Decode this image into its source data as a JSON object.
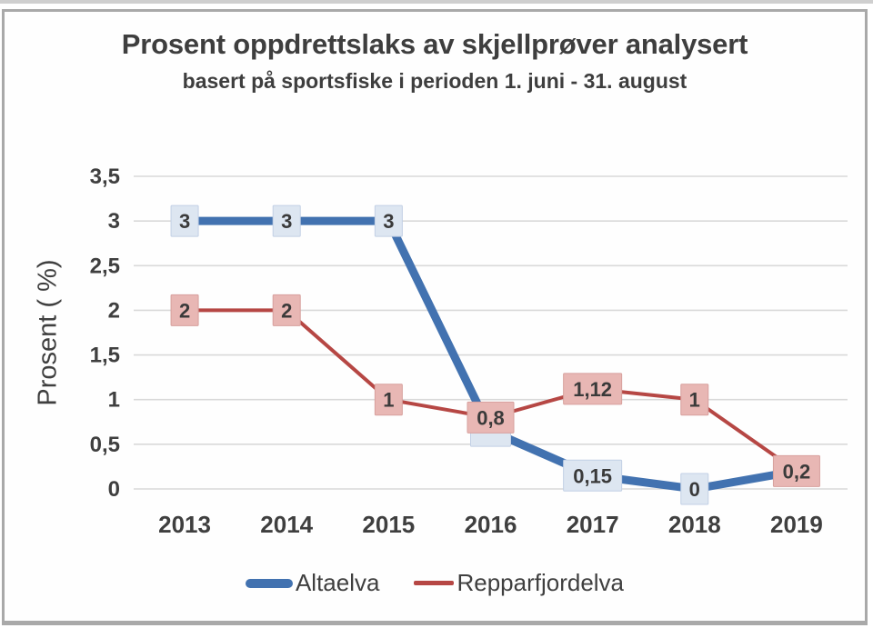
{
  "window": {
    "background": "#ffffff",
    "top_strip_color": "#cfcfcf",
    "frame_border_color": "#a9a9a9"
  },
  "chart_data": {
    "type": "line",
    "title": "Prosent oppdrettslaks av skjellprøver analysert",
    "subtitle": "basert på sportsfiske i perioden 1. juni - 31. august",
    "ylabel": "Prosent ( %)",
    "xlabel": "",
    "categories": [
      "2013",
      "2014",
      "2015",
      "2016",
      "2017",
      "2018",
      "2019"
    ],
    "ylim": [
      0,
      3.5
    ],
    "ytick_interval": 0.5,
    "ytick_labels": [
      "0",
      "0,5",
      "1",
      "1,5",
      "2",
      "2,5",
      "3",
      "3,5"
    ],
    "grid": true,
    "gridline_color": "#d9d9d9",
    "legend_position": "bottom",
    "text_color": "#3f3f3f",
    "label_text_color": "#3a3a3a",
    "series": [
      {
        "name": "Altaelva",
        "color": "#4272b0",
        "line_width": 9,
        "label_box_fill": "#dde6f1",
        "label_box_border": "#c2d0e5",
        "values": [
          3,
          3,
          3,
          0.65,
          0.15,
          0,
          0.2
        ],
        "labels": [
          "3",
          "3",
          "3",
          "",
          "0,15",
          "0",
          null
        ]
      },
      {
        "name": "Repparfjordelva",
        "color": "#b64744",
        "line_width": 4,
        "label_box_fill": "#e8b7b4",
        "label_box_border": "#d7a09d",
        "values": [
          2,
          2,
          1,
          0.8,
          1.12,
          1,
          0.2
        ],
        "labels": [
          "2",
          "2",
          "1",
          "0,8",
          "1,12",
          "1",
          "0,2"
        ]
      }
    ]
  }
}
